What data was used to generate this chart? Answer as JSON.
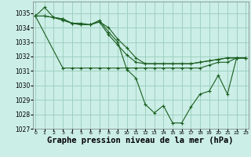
{
  "background_color": "#cbeee6",
  "grid_color": "#99ccbb",
  "line_color": "#1a5e20",
  "marker": "+",
  "xlabel": "Graphe pression niveau de la mer (hPa)",
  "xlabel_fontsize": 7.5,
  "ylim": [
    1027,
    1035.8
  ],
  "xlim": [
    -0.3,
    23.3
  ],
  "yticks": [
    1027,
    1028,
    1029,
    1030,
    1031,
    1032,
    1033,
    1034,
    1035
  ],
  "xticks": [
    0,
    1,
    2,
    3,
    4,
    5,
    6,
    7,
    8,
    9,
    10,
    11,
    12,
    13,
    14,
    15,
    16,
    17,
    18,
    19,
    20,
    21,
    22,
    23
  ],
  "series": [
    {
      "x": [
        0,
        1,
        2,
        3,
        4,
        5,
        6,
        7,
        8,
        9,
        10,
        11,
        12,
        13,
        14,
        15,
        16,
        17,
        18,
        19,
        20,
        21,
        22,
        23
      ],
      "y": [
        1034.8,
        1035.4,
        1034.7,
        1034.6,
        1034.3,
        1034.2,
        1034.2,
        1034.5,
        1033.7,
        1033.0,
        1031.1,
        1030.5,
        1028.7,
        1028.1,
        1028.6,
        1027.4,
        1027.4,
        1028.5,
        1029.4,
        1029.6,
        1030.7,
        1029.4,
        1031.9,
        1031.9
      ]
    },
    {
      "x": [
        0,
        3,
        4,
        5,
        6,
        7,
        8,
        9,
        10,
        11,
        12,
        13,
        14,
        15,
        16,
        17,
        18,
        19,
        20,
        21,
        22,
        23
      ],
      "y": [
        1034.8,
        1031.2,
        1031.2,
        1031.2,
        1031.2,
        1031.2,
        1031.2,
        1031.2,
        1031.2,
        1031.2,
        1031.2,
        1031.2,
        1031.2,
        1031.2,
        1031.2,
        1031.2,
        1031.2,
        1031.4,
        1031.6,
        1031.6,
        1031.9,
        1031.9
      ]
    },
    {
      "x": [
        0,
        1,
        2,
        3,
        4,
        5,
        6,
        7,
        8,
        9,
        10,
        11,
        12,
        13,
        14,
        15,
        16,
        17,
        18,
        19,
        20,
        21,
        22,
        23
      ],
      "y": [
        1034.8,
        1034.8,
        1034.7,
        1034.6,
        1034.3,
        1034.3,
        1034.2,
        1034.4,
        1034.0,
        1033.2,
        1032.6,
        1031.9,
        1031.5,
        1031.5,
        1031.5,
        1031.5,
        1031.5,
        1031.5,
        1031.6,
        1031.7,
        1031.8,
        1031.9,
        1031.9,
        1031.9
      ]
    },
    {
      "x": [
        0,
        1,
        2,
        3,
        4,
        5,
        6,
        7,
        8,
        9,
        10,
        11,
        12,
        13,
        14,
        15,
        16,
        17,
        18,
        19,
        20,
        21,
        22,
        23
      ],
      "y": [
        1034.8,
        1034.8,
        1034.7,
        1034.5,
        1034.3,
        1034.2,
        1034.2,
        1034.4,
        1033.5,
        1032.8,
        1032.1,
        1031.6,
        1031.5,
        1031.5,
        1031.5,
        1031.5,
        1031.5,
        1031.5,
        1031.6,
        1031.7,
        1031.8,
        1031.9,
        1031.9,
        1031.9
      ]
    }
  ]
}
